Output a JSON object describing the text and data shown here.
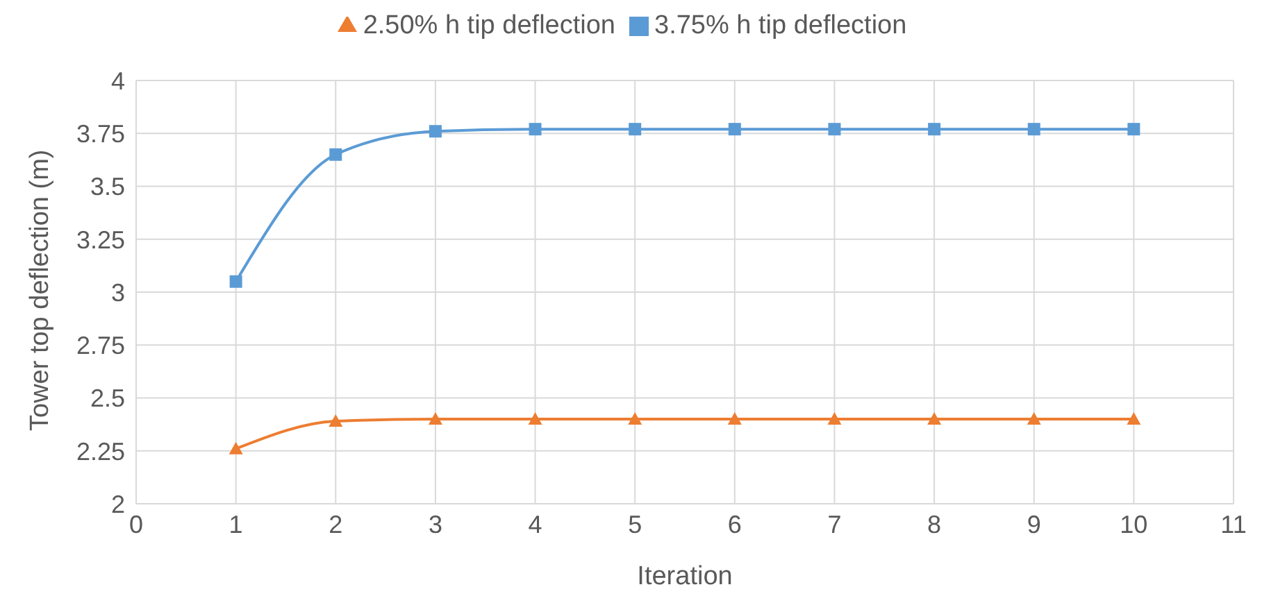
{
  "chart_data": {
    "type": "line",
    "xlabel": "Iteration",
    "ylabel": "Tower top deflection (m)",
    "x": [
      1,
      2,
      3,
      4,
      5,
      6,
      7,
      8,
      9,
      10
    ],
    "series": [
      {
        "name": "2.50% h tip deflection",
        "color": "#ed7d31",
        "marker": "triangle",
        "values": [
          2.26,
          2.39,
          2.4,
          2.4,
          2.4,
          2.4,
          2.4,
          2.4,
          2.4,
          2.4
        ]
      },
      {
        "name": "3.75% h tip deflection",
        "color": "#5b9bd5",
        "marker": "square",
        "values": [
          3.05,
          3.65,
          3.76,
          3.77,
          3.77,
          3.77,
          3.77,
          3.77,
          3.77,
          3.77
        ]
      }
    ],
    "xlim": [
      0,
      11
    ],
    "xticks": [
      0,
      1,
      2,
      3,
      4,
      5,
      6,
      7,
      8,
      9,
      10,
      11
    ],
    "ylim": [
      2,
      4
    ],
    "yticks": [
      2,
      2.25,
      2.5,
      2.75,
      3,
      3.25,
      3.5,
      3.75,
      4
    ],
    "grid": true,
    "legend": "top",
    "line_style": "solid"
  }
}
